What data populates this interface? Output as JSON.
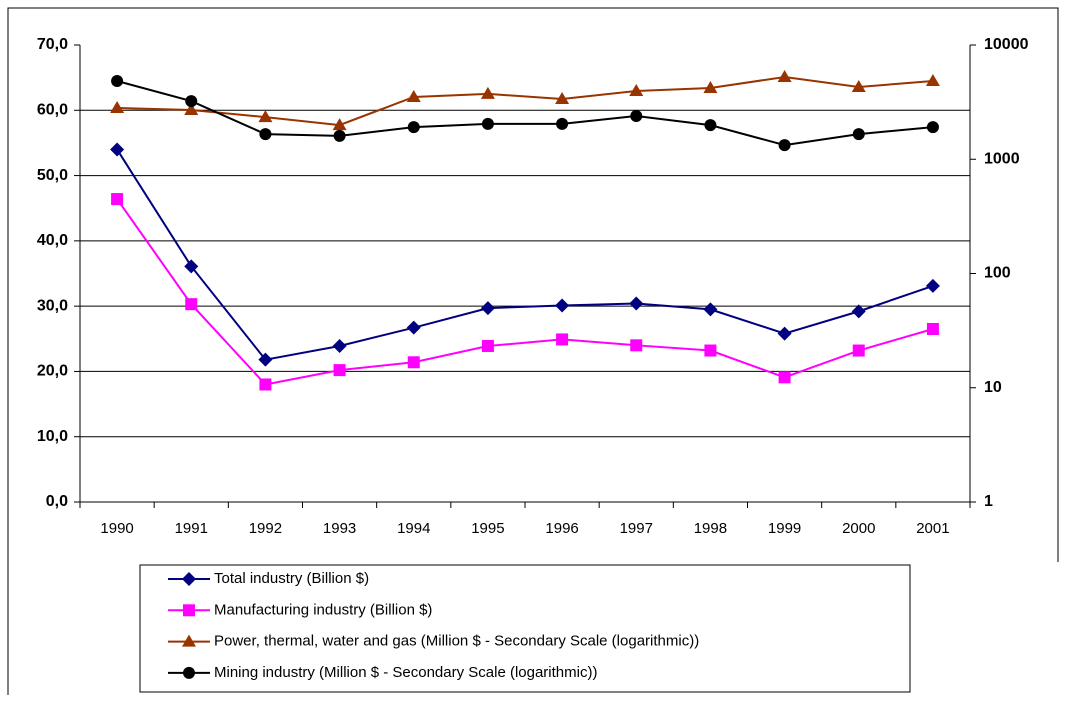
{
  "chart_data": {
    "type": "line",
    "categories": [
      "1990",
      "1991",
      "1992",
      "1993",
      "1994",
      "1995",
      "1996",
      "1997",
      "1998",
      "1999",
      "2000",
      "2001"
    ],
    "ylim": [
      0,
      70
    ],
    "yticks": [
      {
        "value": 0,
        "label": "0,0"
      },
      {
        "value": 10,
        "label": "10,0"
      },
      {
        "value": 20,
        "label": "20,0"
      },
      {
        "value": 30,
        "label": "30,0"
      },
      {
        "value": 40,
        "label": "40,0"
      },
      {
        "value": 50,
        "label": "50,0"
      },
      {
        "value": 60,
        "label": "60,0"
      },
      {
        "value": 70,
        "label": "70,0"
      }
    ],
    "y2lim": [
      1,
      10000
    ],
    "y2scale": "log",
    "y2ticks": [
      1,
      10,
      100,
      1000,
      10000
    ],
    "grid": true,
    "legend": "bottom",
    "series": [
      {
        "name": "Total industry (Billion $)",
        "color": "#000080",
        "marker": "diamond",
        "values": [
          54.0,
          36.1,
          21.8,
          23.9,
          26.7,
          29.7,
          30.1,
          30.4,
          29.5,
          25.8,
          29.2,
          33.1
        ]
      },
      {
        "name": "Manufacturing industry (Billion $)",
        "color": "#ff00ff",
        "marker": "square",
        "values": [
          46.4,
          30.3,
          18.0,
          20.2,
          21.4,
          23.9,
          24.9,
          24.0,
          23.2,
          19.1,
          23.2,
          26.5
        ]
      },
      {
        "name": "Power, thermal, water and gas (Million $ - Secondary Scale (logarithmic))",
        "color": "#993300",
        "marker": "triangle",
        "axis": "y2",
        "values": [
          2810,
          2700,
          2340,
          1990,
          3510,
          3730,
          3370,
          3960,
          4200,
          5250,
          4290,
          4840
        ]
      },
      {
        "name": "Mining industry (Million $ - Secondary Scale (logarithmic))",
        "color": "#000000",
        "marker": "circle",
        "axis": "y2",
        "values": [
          4840,
          3230,
          1660,
          1600,
          1910,
          2040,
          2040,
          2390,
          1990,
          1330,
          1660,
          1910
        ]
      }
    ]
  }
}
